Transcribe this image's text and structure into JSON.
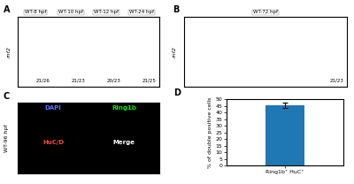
{
  "chart_data": [
    {
      "type": "image",
      "title": "A",
      "ylabel": "rnf2",
      "categories": [
        "WT-8 hpf",
        "WT-10 hpf",
        "WT-12 hpf",
        "WT-24 hpf"
      ],
      "annotations": [
        "21/26",
        "21/23",
        "20/23",
        "21/25"
      ]
    },
    {
      "type": "image",
      "title": "B",
      "ylabel": "rnf2",
      "categories": [
        "WT-72 hpf"
      ],
      "annotations": [
        "21/23"
      ]
    },
    {
      "type": "image",
      "title": "C",
      "ylabel": "WT-96 hpf",
      "categories": [
        "DAPI",
        "Ring1b",
        "HuC/D",
        "Merge"
      ],
      "colors": [
        "#5577ff",
        "#00ee00",
        "#ff4444",
        "#ffffff"
      ]
    },
    {
      "type": "bar",
      "title": "D",
      "categories": [
        "Ring1b⁺ HuC⁺"
      ],
      "values": [
        45.5
      ],
      "errors": [
        2.0
      ],
      "ylabel": "% of double positive cells",
      "ylim": [
        0,
        50
      ],
      "yticks": [
        0,
        5,
        10,
        15,
        20,
        25,
        30,
        35,
        40,
        45,
        50
      ],
      "grid": false
    }
  ]
}
